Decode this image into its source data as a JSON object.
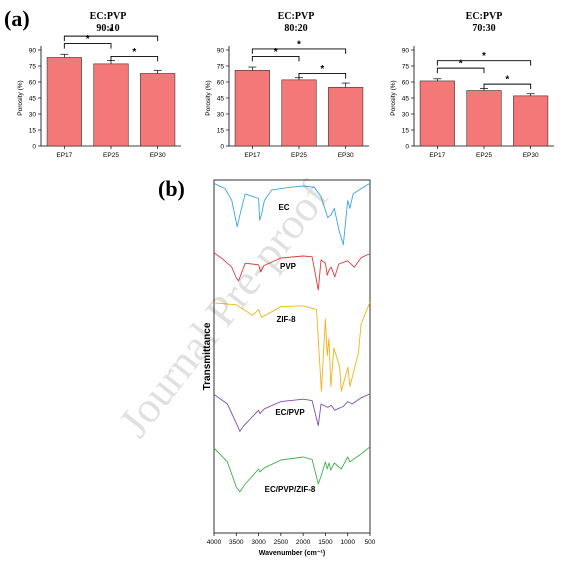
{
  "panel_a_label": "(a)",
  "panel_b_label": "(b)",
  "watermark": "Journal Pre-proof",
  "chart_data": [
    {
      "type": "bar",
      "title": "EC:PVP 90:10",
      "title_lines": [
        "EC:PVP",
        "90:10"
      ],
      "ylabel": "Porosity (%)",
      "ylim": [
        0,
        90
      ],
      "yticks": [
        0,
        15,
        30,
        45,
        60,
        75,
        90
      ],
      "categories": [
        "EP17",
        "EP25",
        "EP30"
      ],
      "values": [
        83,
        77,
        68
      ],
      "errors": [
        3,
        3,
        3
      ],
      "significance": [
        {
          "from": 0,
          "to": 1,
          "label": "*"
        },
        {
          "from": 1,
          "to": 2,
          "label": "*"
        },
        {
          "from": 0,
          "to": 2,
          "label": "*"
        }
      ],
      "bar_color": "#f47878"
    },
    {
      "type": "bar",
      "title": "EC:PVP 80:20",
      "title_lines": [
        "EC:PVP",
        "80:20"
      ],
      "ylabel": "Porosity (%)",
      "ylim": [
        0,
        90
      ],
      "yticks": [
        0,
        15,
        30,
        45,
        60,
        75,
        90
      ],
      "categories": [
        "EP17",
        "EP25",
        "EP30"
      ],
      "values": [
        71,
        62,
        55
      ],
      "errors": [
        3,
        2,
        4
      ],
      "significance": [
        {
          "from": 0,
          "to": 1,
          "label": "*"
        },
        {
          "from": 1,
          "to": 2,
          "label": "*"
        },
        {
          "from": 0,
          "to": 2,
          "label": "*"
        }
      ],
      "bar_color": "#f47878"
    },
    {
      "type": "bar",
      "title": "EC:PVP 70:30",
      "title_lines": [
        "EC:PVP",
        "70:30"
      ],
      "ylabel": "Porosity (%)",
      "ylim": [
        0,
        90
      ],
      "yticks": [
        0,
        15,
        30,
        45,
        60,
        75,
        90
      ],
      "categories": [
        "EP17",
        "EP25",
        "EP30"
      ],
      "values": [
        61,
        52,
        47
      ],
      "errors": [
        2,
        2,
        2
      ],
      "significance": [
        {
          "from": 0,
          "to": 1,
          "label": "*"
        },
        {
          "from": 1,
          "to": 2,
          "label": "*"
        },
        {
          "from": 0,
          "to": 2,
          "label": "*"
        }
      ],
      "bar_color": "#f47878"
    },
    {
      "type": "line",
      "xlabel": "Wavenumber (cm⁻¹)",
      "ylabel": "Transmittance",
      "xlim": [
        4000,
        500
      ],
      "xticks": [
        4000,
        3500,
        3000,
        2500,
        2000,
        1500,
        1000,
        500
      ],
      "series": [
        {
          "name": "EC",
          "color": "#3aa7dc",
          "x": [
            4000,
            3750,
            3600,
            3480,
            3400,
            3300,
            3000,
            2975,
            2930,
            2870,
            2700,
            2300,
            2000,
            1750,
            1600,
            1450,
            1380,
            1300,
            1200,
            1100,
            1050,
            1000,
            950,
            880,
            700,
            500
          ],
          "y": [
            0.98,
            0.9,
            0.72,
            0.32,
            0.55,
            0.82,
            0.75,
            0.42,
            0.52,
            0.72,
            0.88,
            0.92,
            0.94,
            0.92,
            0.78,
            0.46,
            0.5,
            0.6,
            0.28,
            0.05,
            0.38,
            0.72,
            0.6,
            0.82,
            0.9,
            0.98
          ]
        },
        {
          "name": "PVP",
          "color": "#e03a3a",
          "x": [
            4000,
            3800,
            3600,
            3500,
            3450,
            3400,
            3300,
            3000,
            2950,
            2880,
            2500,
            2000,
            1800,
            1660,
            1600,
            1500,
            1460,
            1420,
            1370,
            1290,
            1200,
            1000,
            850,
            700,
            500
          ],
          "y": [
            0.98,
            0.82,
            0.62,
            0.35,
            0.28,
            0.42,
            0.72,
            0.68,
            0.5,
            0.66,
            0.85,
            0.9,
            0.88,
            0.05,
            0.8,
            0.72,
            0.42,
            0.55,
            0.62,
            0.38,
            0.7,
            0.78,
            0.62,
            0.86,
            0.96
          ]
        },
        {
          "name": "ZIF-8",
          "color": "#f2b21b",
          "x": [
            4000,
            3500,
            3135,
            3000,
            2930,
            2500,
            2000,
            1700,
            1590,
            1500,
            1460,
            1420,
            1380,
            1310,
            1180,
            1145,
            995,
            950,
            760,
            700,
            500
          ],
          "y": [
            0.97,
            0.95,
            0.84,
            0.9,
            0.82,
            0.93,
            0.94,
            0.9,
            0.05,
            0.8,
            0.42,
            0.6,
            0.1,
            0.5,
            0.3,
            0.05,
            0.3,
            0.1,
            0.45,
            0.75,
            0.98
          ]
        },
        {
          "name": "EC/PVP",
          "color": "#7b4fb0",
          "x": [
            4000,
            3700,
            3500,
            3420,
            3350,
            3000,
            2970,
            2870,
            2500,
            2000,
            1800,
            1660,
            1600,
            1450,
            1370,
            1290,
            1100,
            1000,
            900,
            700,
            500
          ],
          "y": [
            0.95,
            0.75,
            0.35,
            0.18,
            0.28,
            0.62,
            0.55,
            0.65,
            0.8,
            0.85,
            0.82,
            0.3,
            0.75,
            0.68,
            0.72,
            0.62,
            0.7,
            0.8,
            0.75,
            0.88,
            0.96
          ]
        },
        {
          "name": "EC/PVP/ZIF-8",
          "color": "#3fb04a",
          "x": [
            4000,
            3700,
            3500,
            3420,
            3300,
            3000,
            2970,
            2870,
            2500,
            2000,
            1800,
            1660,
            1590,
            1500,
            1460,
            1420,
            1380,
            1300,
            1145,
            1000,
            950,
            700,
            500
          ],
          "y": [
            0.95,
            0.72,
            0.3,
            0.22,
            0.35,
            0.6,
            0.55,
            0.62,
            0.75,
            0.8,
            0.76,
            0.35,
            0.5,
            0.72,
            0.6,
            0.7,
            0.58,
            0.7,
            0.6,
            0.8,
            0.72,
            0.85,
            0.97
          ]
        }
      ]
    }
  ]
}
